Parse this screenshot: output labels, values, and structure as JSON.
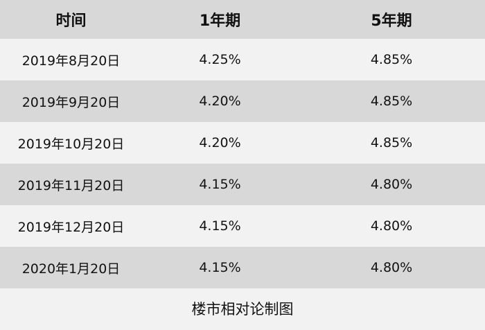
{
  "table": {
    "headers": [
      "时间",
      "1年期",
      "5年期"
    ],
    "rows": [
      [
        "2019年8月20日",
        "4.25%",
        "4.85%"
      ],
      [
        "2019年9月20日",
        "4.20%",
        "4.85%"
      ],
      [
        "2019年10月20日",
        "4.20%",
        "4.85%"
      ],
      [
        "2019年11月20日",
        "4.15%",
        "4.80%"
      ],
      [
        "2019年12月20日",
        "4.15%",
        "4.80%"
      ],
      [
        "2020年1月20日",
        "4.15%",
        "4.80%"
      ]
    ]
  },
  "caption": "楼市相对论制图",
  "colors": {
    "light_row": "#f2f2f2",
    "dark_row": "#d8d8d8",
    "text": "#111111"
  }
}
